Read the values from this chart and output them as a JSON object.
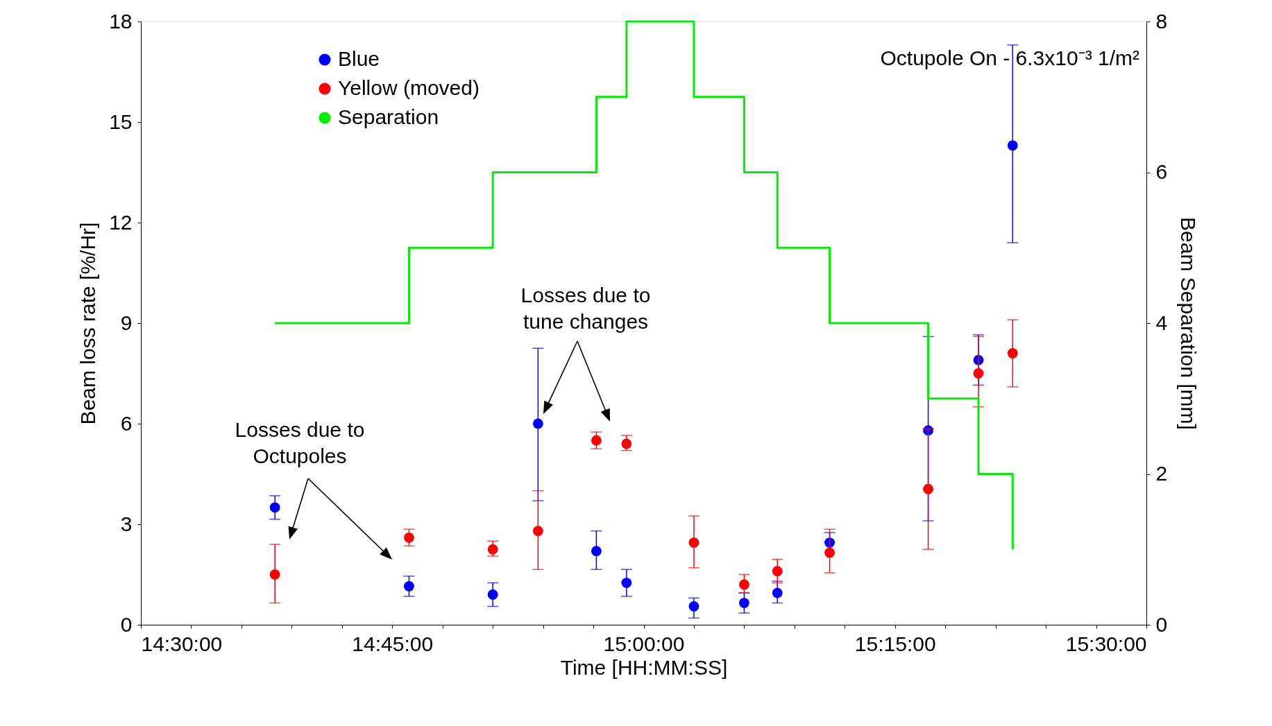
{
  "chart_data": {
    "type": "scatter",
    "xlabel": "Time [HH:MM:SS]",
    "ylabel": "Beam loss rate [%/Hr]",
    "y2label": "Beam Separation [mm]",
    "x": [
      14.6333,
      14.7667,
      14.85,
      14.895,
      14.953,
      14.983,
      15.05,
      15.1,
      15.133,
      15.185,
      15.283,
      15.333,
      15.367
    ],
    "series": [
      {
        "name": "Blue",
        "color": "#0000ff",
        "values": [
          3.5,
          1.15,
          0.9,
          6.0,
          2.2,
          1.25,
          0.55,
          0.65,
          0.95,
          2.45,
          5.8,
          7.9,
          14.3
        ],
        "errors": [
          [
            3.15,
            3.85
          ],
          [
            0.85,
            1.45
          ],
          [
            0.55,
            1.25
          ],
          [
            3.7,
            8.25
          ],
          [
            1.65,
            2.8
          ],
          [
            0.85,
            1.65
          ],
          [
            0.2,
            0.8
          ],
          [
            0.35,
            0.95
          ],
          [
            0.65,
            1.3
          ],
          [
            2.45,
            2.75
          ],
          [
            3.1,
            8.6
          ],
          [
            7.15,
            8.65
          ],
          [
            11.4,
            17.3
          ]
        ]
      },
      {
        "name": "Yellow (moved)",
        "color": "#ff0000",
        "values": [
          1.5,
          2.6,
          2.25,
          2.8,
          5.5,
          5.4,
          2.45,
          1.2,
          1.6,
          2.15,
          4.05,
          7.5,
          8.1
        ],
        "errors": [
          [
            0.65,
            2.4
          ],
          [
            2.35,
            2.85
          ],
          [
            2.05,
            2.5
          ],
          [
            1.65,
            4.0
          ],
          [
            5.25,
            5.75
          ],
          [
            5.2,
            5.65
          ],
          [
            1.7,
            3.25
          ],
          [
            0.95,
            1.5
          ],
          [
            1.25,
            1.95
          ],
          [
            1.55,
            2.85
          ],
          [
            2.25,
            5.85
          ],
          [
            6.5,
            8.6
          ],
          [
            7.1,
            9.1
          ]
        ]
      },
      {
        "name": "Separation",
        "type": "step",
        "axis": "y2",
        "marker": "none",
        "color": "#00ee00",
        "x": [
          14.6333,
          14.7667,
          14.85,
          14.953,
          14.983,
          15.05,
          15.1,
          15.133,
          15.185,
          15.283,
          15.333,
          15.367
        ],
        "values": [
          4,
          5,
          6,
          7,
          8,
          7,
          6,
          5,
          4,
          3,
          2,
          1
        ]
      }
    ],
    "xlim": [
      14.5,
      15.5
    ],
    "xticks": [
      {
        "value": 14.5,
        "label": "14:30:00"
      },
      {
        "value": 14.55,
        "label": null
      },
      {
        "value": 14.6,
        "label": null
      },
      {
        "value": 14.65,
        "label": null
      },
      {
        "value": 14.7,
        "label": null
      },
      {
        "value": 14.75,
        "label": "14:45:00"
      },
      {
        "value": 14.8,
        "label": null
      },
      {
        "value": 14.85,
        "label": null
      },
      {
        "value": 14.9,
        "label": null
      },
      {
        "value": 14.95,
        "label": null
      },
      {
        "value": 15.0,
        "label": "15:00:00"
      },
      {
        "value": 15.05,
        "label": null
      },
      {
        "value": 15.1,
        "label": null
      },
      {
        "value": 15.15,
        "label": null
      },
      {
        "value": 15.2,
        "label": null
      },
      {
        "value": 15.25,
        "label": "15:15:00"
      },
      {
        "value": 15.3,
        "label": null
      },
      {
        "value": 15.35,
        "label": null
      },
      {
        "value": 15.4,
        "label": null
      },
      {
        "value": 15.45,
        "label": null
      },
      {
        "value": 15.5,
        "label": "15:30:00"
      }
    ],
    "ylim": [
      0,
      18
    ],
    "yticks": [
      0,
      3,
      6,
      9,
      12,
      15,
      18
    ],
    "y2lim": [
      0,
      8
    ],
    "y2ticks": [
      0,
      2,
      4,
      6,
      8
    ],
    "marker": "circle",
    "grid": false,
    "legend": "top left",
    "annotations": [
      "Octupole On - 6.3x10⁻³ 1/m²",
      "Losses due to\nOctupoles",
      "Losses due to\ntune changes"
    ]
  }
}
